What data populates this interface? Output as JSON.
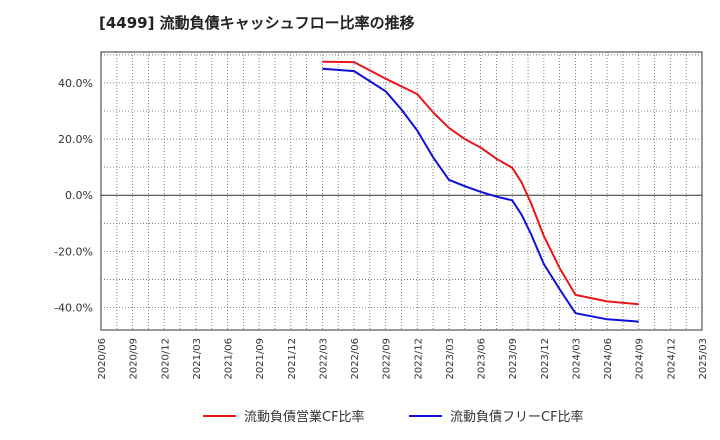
{
  "chart_data": {
    "type": "line",
    "title": "[4499]  流動負債キャッシュフロー比率の推移",
    "xlabel": "",
    "ylabel": "",
    "ylim": [
      -48,
      51
    ],
    "yticks": [
      40,
      20,
      0,
      -20,
      -40
    ],
    "ytick_labels": [
      "40.0%",
      "20.0%",
      "0.0%",
      "-20.0%",
      "-40.0%"
    ],
    "categories": [
      "2020/06",
      "2020/09",
      "2020/12",
      "2021/03",
      "2021/06",
      "2021/09",
      "2021/12",
      "2022/03",
      "2022/06",
      "2022/09",
      "2022/12",
      "2023/03",
      "2023/06",
      "2023/09",
      "2023/12",
      "2024/03",
      "2024/06",
      "2024/09",
      "2024/12",
      "2025/03"
    ],
    "grid": true,
    "legend_position": "bottom-center",
    "series": [
      {
        "name": "流動負債営業CF比率",
        "color": "#e8171a",
        "points": [
          [
            7,
            47.5
          ],
          [
            8,
            47.4
          ],
          [
            9,
            41.5
          ],
          [
            10,
            36.0
          ],
          [
            10.5,
            29.5
          ],
          [
            11,
            24.0
          ],
          [
            11.5,
            20.0
          ],
          [
            12,
            17.0
          ],
          [
            12.5,
            13.0
          ],
          [
            13,
            9.8
          ],
          [
            13.3,
            4.5
          ],
          [
            13.6,
            -3.0
          ],
          [
            14,
            -14.5
          ],
          [
            14.5,
            -26.0
          ],
          [
            15,
            -35.5
          ],
          [
            16,
            -37.8
          ],
          [
            17,
            -38.8
          ]
        ]
      },
      {
        "name": "流動負債フリーCF比率",
        "color": "#1010d8",
        "points": [
          [
            7,
            45.0
          ],
          [
            8,
            44.2
          ],
          [
            9,
            37.0
          ],
          [
            9.5,
            30.5
          ],
          [
            10,
            23.0
          ],
          [
            10.5,
            13.5
          ],
          [
            11,
            5.5
          ],
          [
            11.5,
            3.2
          ],
          [
            12,
            1.2
          ],
          [
            12.5,
            -0.5
          ],
          [
            13,
            -1.8
          ],
          [
            13.3,
            -7.0
          ],
          [
            13.6,
            -14.0
          ],
          [
            14,
            -24.5
          ],
          [
            14.5,
            -33.5
          ],
          [
            15,
            -42.0
          ],
          [
            16,
            -44.2
          ],
          [
            17,
            -45.0
          ]
        ]
      }
    ]
  }
}
